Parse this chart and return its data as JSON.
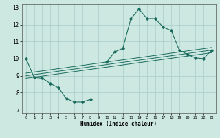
{
  "title": "",
  "xlabel": "Humidex (Indice chaleur)",
  "bg_color": "#cce8e0",
  "grid_color": "#aacccc",
  "line_color": "#1a6b5e",
  "xlim": [
    -0.5,
    23.5
  ],
  "ylim": [
    6.8,
    13.2
  ],
  "xticks": [
    0,
    1,
    2,
    3,
    4,
    5,
    6,
    7,
    8,
    9,
    10,
    11,
    12,
    13,
    14,
    15,
    16,
    17,
    18,
    19,
    20,
    21,
    22,
    23
  ],
  "yticks": [
    7,
    8,
    9,
    10,
    11,
    12,
    13
  ],
  "curve1_x": [
    0,
    1,
    2,
    3,
    4,
    5,
    6,
    7,
    8,
    9,
    10,
    11,
    12,
    13,
    14,
    15,
    16,
    17,
    18,
    19,
    20,
    21,
    22,
    23
  ],
  "curve1_y": [
    10.0,
    8.9,
    8.85,
    8.55,
    8.3,
    7.65,
    7.45,
    7.45,
    7.6,
    null,
    9.8,
    10.4,
    10.6,
    12.35,
    12.9,
    12.35,
    12.35,
    11.85,
    11.65,
    10.5,
    10.25,
    10.05,
    10.0,
    10.5
  ],
  "line1_x": [
    0,
    23
  ],
  "line1_y": [
    8.85,
    10.35
  ],
  "line2_x": [
    0,
    23
  ],
  "line2_y": [
    9.0,
    10.5
  ],
  "line3_x": [
    0,
    23
  ],
  "line3_y": [
    9.15,
    10.65
  ]
}
